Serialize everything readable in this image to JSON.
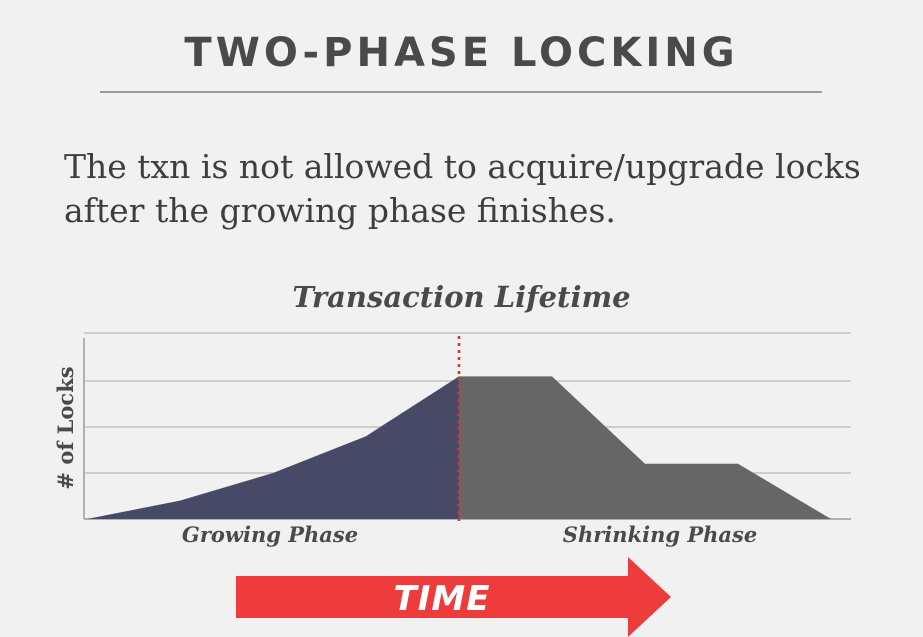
{
  "slide": {
    "title": "TWO-PHASE LOCKING",
    "body_line1": "The txn is not allowed to acquire/upgrade locks",
    "body_line2": "after the growing phase finishes."
  },
  "chart_data": {
    "type": "area",
    "title": "Transaction Lifetime",
    "ylabel": "# of Locks",
    "xlabel": "",
    "ylim": [
      0,
      3
    ],
    "grid": true,
    "growing_phase": {
      "name": "Growing Phase",
      "color": "#474966",
      "x": [
        0,
        1,
        2,
        3,
        4
      ],
      "y": [
        0,
        0.4,
        1.0,
        1.8,
        3.1
      ]
    },
    "shrinking_phase": {
      "name": "Shrinking Phase",
      "color": "#666666",
      "x": [
        4,
        5,
        6,
        7,
        8
      ],
      "y": [
        3.1,
        3.1,
        1.2,
        1.2,
        0
      ]
    },
    "boundary_color": "#e03030"
  },
  "time_arrow": {
    "label": "TIME",
    "color": "#ee3c3c"
  }
}
